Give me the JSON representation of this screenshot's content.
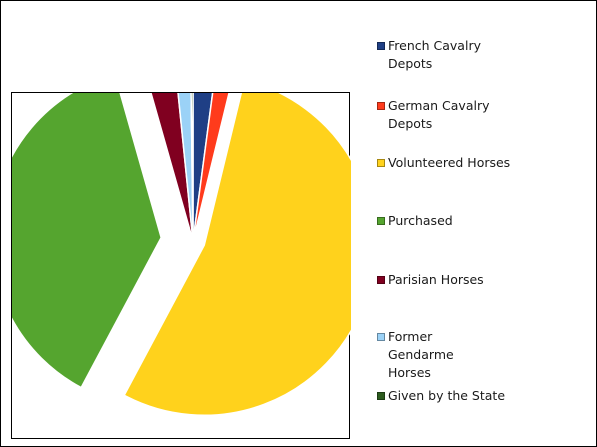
{
  "chart_data": {
    "type": "pie",
    "exploded": true,
    "legend_position": "right",
    "slices": [
      {
        "label": "French Cavalry Depots",
        "value": 2.1,
        "color": "#1f3f85"
      },
      {
        "label": "German Cavalry Depots",
        "value": 1.7,
        "color": "#ff3b1c"
      },
      {
        "label": "Volunteered Horses",
        "value": 54.0,
        "color": "#ffd21c"
      },
      {
        "label": "Purchased",
        "value": 37.8,
        "color": "#55a52f"
      },
      {
        "label": "Parisian Horses",
        "value": 2.8,
        "color": "#800020"
      },
      {
        "label": "Former Gendarme Horses",
        "value": 1.4,
        "color": "#9bd2f7"
      },
      {
        "label": "Given by the State",
        "value": 0.2,
        "color": "#2c5b1e"
      }
    ]
  }
}
